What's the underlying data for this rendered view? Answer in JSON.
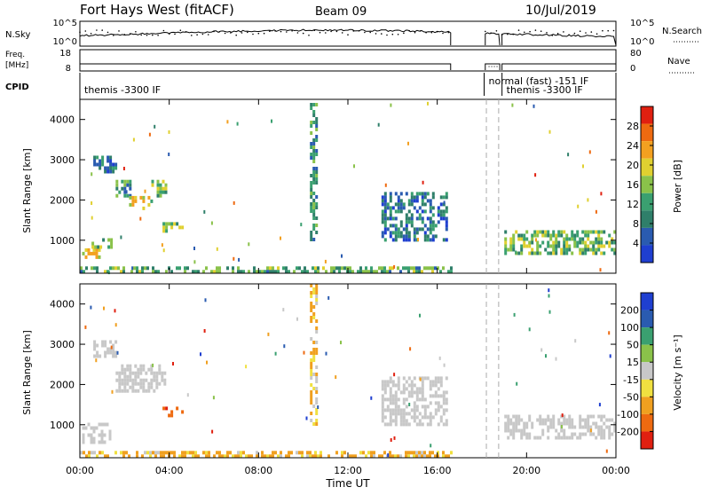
{
  "header": {
    "title": "Fort Hays West (fitACF)",
    "beam": "Beam 09",
    "date": "10/Jul/2019"
  },
  "params": {
    "nsky_label": "N.Sky",
    "nsky_ticks": [
      "10^5",
      "10^0"
    ],
    "nsearch_label": "N.Search",
    "nsearch_ticks": [
      "10^5",
      "10^0"
    ],
    "freq_label": "Freq.",
    "freq_unit": "[MHz]",
    "freq_ticks": [
      "18",
      "8"
    ],
    "nave_label": "Nave",
    "nave_ticks": [
      "80",
      "0"
    ],
    "cpid_label": "CPID",
    "cpid_segments": [
      {
        "text": "themis -3300 IF",
        "start_hour": 0.0
      },
      {
        "text": "normal (fast) -151 IF",
        "start_hour": 18.1
      },
      {
        "text": "themis -3300 IF",
        "start_hour": 18.9
      }
    ]
  },
  "axes": {
    "y_label": "Slant Range [km]",
    "x_label": "Time UT",
    "y_ticks": [
      "1000",
      "2000",
      "3000",
      "4000"
    ],
    "x_ticks": [
      "00:00",
      "04:00",
      "08:00",
      "12:00",
      "16:00",
      "20:00",
      "00:00"
    ]
  },
  "colorbars": {
    "power": {
      "label": "Power [dB]",
      "ticks": [
        "4",
        "8",
        "12",
        "16",
        "20",
        "24",
        "28"
      ]
    },
    "velocity": {
      "label": "Velocity [m s⁻¹]",
      "ticks": [
        "200",
        "100",
        "50",
        "15",
        "-15",
        "-50",
        "-100",
        "-200"
      ]
    }
  },
  "chart_data": [
    {
      "type": "heatmap",
      "name": "power",
      "x_range_hours": [
        0,
        24
      ],
      "y_range_km": [
        180,
        4500
      ],
      "gap_hours": [
        16.6,
        18.9
      ],
      "colorbar_range": [
        0,
        32
      ],
      "echo_regions": [
        {
          "t0": 0.1,
          "t1": 0.9,
          "r0": 550,
          "r1": 800,
          "level": 20
        },
        {
          "t0": 0.4,
          "t1": 1.4,
          "r0": 850,
          "r1": 1050,
          "level": 14
        },
        {
          "t0": 0.6,
          "t1": 1.6,
          "r0": 2700,
          "r1": 3100,
          "level": 8
        },
        {
          "t0": 1.6,
          "t1": 2.2,
          "r0": 2100,
          "r1": 2500,
          "level": 10
        },
        {
          "t0": 2.2,
          "t1": 3.2,
          "r0": 1800,
          "r1": 2100,
          "level": 18
        },
        {
          "t0": 3.2,
          "t1": 3.8,
          "r0": 2100,
          "r1": 2500,
          "level": 12
        },
        {
          "t0": 3.7,
          "t1": 4.6,
          "r0": 1200,
          "r1": 1450,
          "level": 16
        },
        {
          "t0": 13.5,
          "t1": 16.4,
          "r0": 1000,
          "r1": 2200,
          "level": 6
        },
        {
          "t0": 19.0,
          "t1": 24.0,
          "r0": 700,
          "r1": 1250,
          "level": 14
        },
        {
          "t0": 0.0,
          "t1": 16.6,
          "r0": 180,
          "r1": 350,
          "level": 12
        },
        {
          "t0": 10.3,
          "t1": 10.6,
          "r0": 1000,
          "r1": 4500,
          "level": 10
        }
      ]
    },
    {
      "type": "heatmap",
      "name": "velocity",
      "x_range_hours": [
        0,
        24
      ],
      "y_range_km": [
        180,
        4500
      ],
      "gap_hours": [
        16.6,
        18.9
      ],
      "colorbar_range": [
        -200,
        200
      ],
      "echo_regions": [
        {
          "t0": 0.1,
          "t1": 1.4,
          "r0": 550,
          "r1": 1050,
          "level": 0
        },
        {
          "t0": 0.6,
          "t1": 1.6,
          "r0": 2700,
          "r1": 3100,
          "level": 0
        },
        {
          "t0": 1.6,
          "t1": 3.8,
          "r0": 1800,
          "r1": 2500,
          "level": 0
        },
        {
          "t0": 3.7,
          "t1": 4.6,
          "r0": 1200,
          "r1": 1450,
          "level": -120
        },
        {
          "t0": 13.5,
          "t1": 16.4,
          "r0": 1000,
          "r1": 2200,
          "level": 0
        },
        {
          "t0": 19.0,
          "t1": 24.0,
          "r0": 700,
          "r1": 1250,
          "level": 0
        },
        {
          "t0": 0.0,
          "t1": 16.6,
          "r0": 180,
          "r1": 350,
          "level": -40
        },
        {
          "t0": 10.3,
          "t1": 10.6,
          "r0": 1000,
          "r1": 4500,
          "level": -30
        }
      ]
    }
  ],
  "colors": {
    "gap_line": "#aaaaaa",
    "ground_scatter": "#c8c8c8"
  }
}
